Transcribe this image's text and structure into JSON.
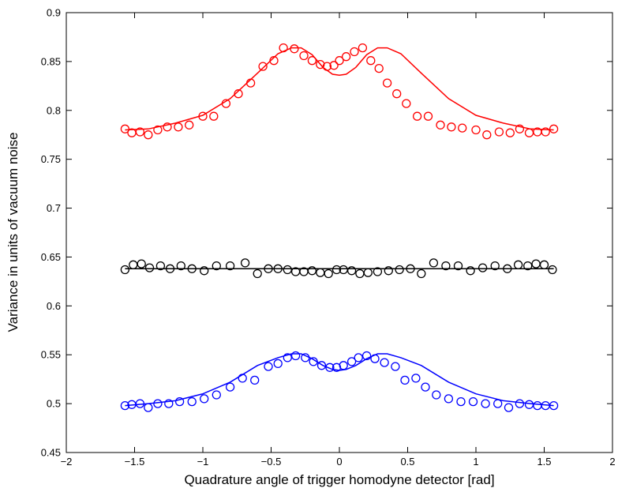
{
  "chart_data": {
    "type": "scatter",
    "title": "",
    "xlabel": "Quadrature angle of trigger homodyne detector [rad]",
    "ylabel": "Variance in units of vacuum noise",
    "xlim": [
      -2,
      2
    ],
    "ylim": [
      0.45,
      0.9
    ],
    "x_ticks": [
      -2,
      -1.5,
      -1,
      -0.5,
      0,
      0.5,
      1,
      1.5,
      2
    ],
    "x_tick_labels": [
      "−2",
      "−1.5",
      "−1",
      "−0.5",
      "0",
      "0.5",
      "1",
      "1.5",
      "2"
    ],
    "y_ticks": [
      0.45,
      0.5,
      0.55,
      0.6,
      0.65,
      0.7,
      0.75,
      0.8,
      0.85,
      0.9
    ],
    "y_tick_labels": [
      "0.45",
      "0.5",
      "0.55",
      "0.6",
      "0.65",
      "0.7",
      "0.75",
      "0.8",
      "0.85",
      "0.9"
    ],
    "grid": false,
    "legend": "none",
    "series": [
      {
        "color": "#ff0000",
        "marker": "circle",
        "x": [
          -1.57,
          -1.52,
          -1.46,
          -1.4,
          -1.33,
          -1.26,
          -1.18,
          -1.1,
          -1.0,
          -0.92,
          -0.83,
          -0.74,
          -0.65,
          -0.56,
          -0.48,
          -0.41,
          -0.33,
          -0.26,
          -0.2,
          -0.14,
          -0.09,
          -0.04,
          0.0,
          0.05,
          0.11,
          0.17,
          0.23,
          0.29,
          0.35,
          0.42,
          0.49,
          0.57,
          0.65,
          0.74,
          0.82,
          0.9,
          1.0,
          1.08,
          1.17,
          1.25,
          1.32,
          1.39,
          1.45,
          1.51,
          1.57
        ],
        "y": [
          0.781,
          0.777,
          0.778,
          0.775,
          0.78,
          0.783,
          0.783,
          0.785,
          0.794,
          0.794,
          0.807,
          0.817,
          0.828,
          0.845,
          0.851,
          0.864,
          0.863,
          0.856,
          0.851,
          0.847,
          0.845,
          0.846,
          0.851,
          0.855,
          0.86,
          0.864,
          0.851,
          0.843,
          0.828,
          0.817,
          0.807,
          0.794,
          0.794,
          0.785,
          0.783,
          0.782,
          0.78,
          0.775,
          0.778,
          0.777,
          0.781,
          0.777,
          0.778,
          0.778,
          0.781
        ],
        "fit_x": [
          -1.57,
          -1.4,
          -1.2,
          -1.0,
          -0.8,
          -0.6,
          -0.45,
          -0.35,
          -0.28,
          -0.2,
          -0.12,
          -0.05,
          0.0,
          0.05,
          0.12,
          0.2,
          0.28,
          0.35,
          0.45,
          0.6,
          0.8,
          1.0,
          1.2,
          1.4,
          1.57
        ],
        "fit_y": [
          0.78,
          0.781,
          0.787,
          0.795,
          0.812,
          0.838,
          0.858,
          0.864,
          0.864,
          0.857,
          0.844,
          0.837,
          0.836,
          0.837,
          0.844,
          0.857,
          0.864,
          0.864,
          0.858,
          0.838,
          0.812,
          0.795,
          0.787,
          0.781,
          0.78
        ]
      },
      {
        "color": "#000000",
        "marker": "circle",
        "x": [
          -1.57,
          -1.51,
          -1.45,
          -1.39,
          -1.31,
          -1.24,
          -1.16,
          -1.08,
          -0.99,
          -0.9,
          -0.8,
          -0.69,
          -0.6,
          -0.52,
          -0.45,
          -0.38,
          -0.32,
          -0.26,
          -0.2,
          -0.14,
          -0.08,
          -0.02,
          0.03,
          0.09,
          0.15,
          0.21,
          0.28,
          0.36,
          0.44,
          0.52,
          0.6,
          0.69,
          0.78,
          0.87,
          0.96,
          1.05,
          1.14,
          1.23,
          1.31,
          1.38,
          1.44,
          1.5,
          1.56
        ],
        "y": [
          0.637,
          0.642,
          0.643,
          0.639,
          0.641,
          0.638,
          0.641,
          0.638,
          0.636,
          0.641,
          0.641,
          0.644,
          0.633,
          0.638,
          0.638,
          0.637,
          0.635,
          0.635,
          0.636,
          0.634,
          0.633,
          0.637,
          0.637,
          0.636,
          0.633,
          0.634,
          0.635,
          0.636,
          0.637,
          0.638,
          0.633,
          0.644,
          0.641,
          0.641,
          0.636,
          0.639,
          0.641,
          0.638,
          0.642,
          0.641,
          0.643,
          0.642,
          0.637
        ],
        "fit_x": [
          -1.57,
          1.57
        ],
        "fit_y": [
          0.638,
          0.638
        ]
      },
      {
        "color": "#0000ff",
        "marker": "circle",
        "x": [
          -1.57,
          -1.52,
          -1.46,
          -1.4,
          -1.33,
          -1.25,
          -1.17,
          -1.08,
          -0.99,
          -0.9,
          -0.8,
          -0.71,
          -0.62,
          -0.52,
          -0.45,
          -0.38,
          -0.32,
          -0.25,
          -0.19,
          -0.13,
          -0.07,
          -0.02,
          0.03,
          0.09,
          0.14,
          0.2,
          0.26,
          0.33,
          0.41,
          0.48,
          0.56,
          0.63,
          0.71,
          0.8,
          0.89,
          0.98,
          1.07,
          1.16,
          1.24,
          1.32,
          1.39,
          1.45,
          1.51,
          1.57
        ],
        "y": [
          0.498,
          0.499,
          0.5,
          0.496,
          0.5,
          0.5,
          0.502,
          0.502,
          0.505,
          0.509,
          0.517,
          0.526,
          0.524,
          0.538,
          0.541,
          0.547,
          0.549,
          0.547,
          0.543,
          0.539,
          0.537,
          0.537,
          0.539,
          0.543,
          0.547,
          0.549,
          0.546,
          0.542,
          0.538,
          0.524,
          0.526,
          0.517,
          0.509,
          0.505,
          0.502,
          0.502,
          0.5,
          0.5,
          0.496,
          0.5,
          0.499,
          0.498,
          0.498,
          0.498
        ],
        "fit_x": [
          -1.57,
          -1.4,
          -1.2,
          -1.0,
          -0.8,
          -0.6,
          -0.45,
          -0.35,
          -0.28,
          -0.2,
          -0.12,
          -0.05,
          0.0,
          0.05,
          0.12,
          0.2,
          0.28,
          0.35,
          0.45,
          0.6,
          0.8,
          1.0,
          1.2,
          1.4,
          1.57
        ],
        "fit_y": [
          0.498,
          0.5,
          0.503,
          0.51,
          0.522,
          0.539,
          0.547,
          0.551,
          0.551,
          0.546,
          0.539,
          0.535,
          0.534,
          0.535,
          0.539,
          0.546,
          0.551,
          0.551,
          0.547,
          0.539,
          0.522,
          0.51,
          0.503,
          0.5,
          0.498
        ]
      }
    ]
  }
}
